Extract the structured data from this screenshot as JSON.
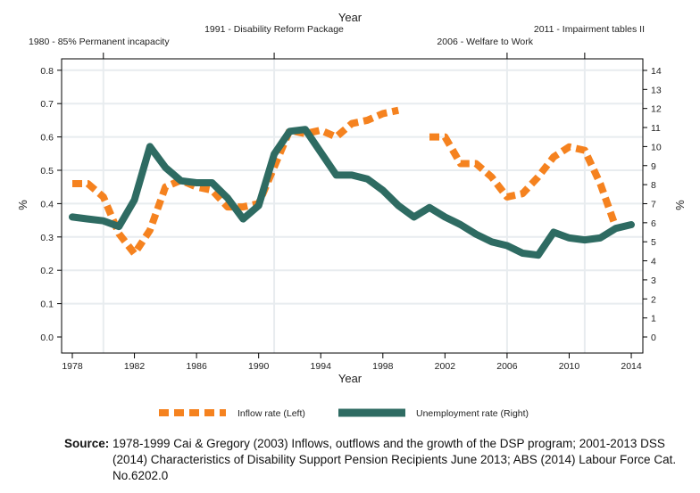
{
  "chart_data": {
    "type": "line",
    "xlabel": "Year",
    "top_axis_title": "Year",
    "ylabel_left": "%",
    "ylabel_right": "%",
    "x": [
      1978,
      1979,
      1980,
      1981,
      1982,
      1983,
      1984,
      1985,
      1986,
      1987,
      1988,
      1989,
      1990,
      1991,
      1992,
      1993,
      1994,
      1995,
      1996,
      1997,
      1998,
      1999,
      2000,
      2001,
      2002,
      2003,
      2004,
      2005,
      2006,
      2007,
      2008,
      2009,
      2010,
      2011,
      2012,
      2013,
      2014
    ],
    "xlim": [
      1977.3,
      2014.8
    ],
    "x_ticks": [
      1978,
      1982,
      1986,
      1990,
      1994,
      1998,
      2002,
      2006,
      2010,
      2014
    ],
    "ylim_left": [
      -0.05,
      0.83
    ],
    "y_ticks_left": [
      "0.0",
      "0.1",
      "0.2",
      "0.3",
      "0.4",
      "0.5",
      "0.6",
      "0.7",
      "0.8"
    ],
    "ylim_right": [
      -0.875,
      14.5
    ],
    "y_ticks_right": [
      "0",
      "1",
      "2",
      "3",
      "4",
      "5",
      "6",
      "7",
      "8",
      "9",
      "10",
      "11",
      "12",
      "13",
      "14"
    ],
    "grid": true,
    "legend_position": "bottom",
    "annotations": [
      {
        "year": 1980,
        "label": "1980 - 85% Permanent incapacity"
      },
      {
        "year": 1991,
        "label": "1991 - Disability Reform Package"
      },
      {
        "year": 2006,
        "label": "2006 - Welfare to Work"
      },
      {
        "year": 2011,
        "label": "2011 - Impairment tables II"
      }
    ],
    "series": [
      {
        "name": "Inflow rate (Left)",
        "axis": "left",
        "style": "dashed",
        "color": "#f5821f",
        "values": [
          0.46,
          0.46,
          0.42,
          0.31,
          0.25,
          0.32,
          0.45,
          0.47,
          0.45,
          0.44,
          0.39,
          0.39,
          0.4,
          0.51,
          0.62,
          0.61,
          0.62,
          0.6,
          0.64,
          0.65,
          0.67,
          0.68,
          null,
          0.6,
          0.6,
          0.52,
          0.52,
          0.48,
          0.42,
          0.43,
          0.48,
          0.54,
          0.57,
          0.56,
          0.46,
          0.33,
          null
        ]
      },
      {
        "name": "Unemployment rate (Right)",
        "axis": "right",
        "style": "solid",
        "color": "#2e6b62",
        "values": [
          6.3,
          6.2,
          6.1,
          5.8,
          7.2,
          10.0,
          8.9,
          8.2,
          8.1,
          8.1,
          7.3,
          6.2,
          6.9,
          9.6,
          10.8,
          10.9,
          9.7,
          8.5,
          8.5,
          8.3,
          7.7,
          6.9,
          6.3,
          6.8,
          6.3,
          5.9,
          5.4,
          5.0,
          4.8,
          4.4,
          4.3,
          5.5,
          5.2,
          5.1,
          5.2,
          5.7,
          5.9
        ]
      }
    ]
  },
  "source": {
    "label": "Source:",
    "text": "1978-1999 Cai & Gregory (2003) Inflows, outflows and the growth of the DSP program; 2001-2013 DSS (2014) Characteristics of Disability Support Pension Recipients June 2013; ABS (2014) Labour Force Cat. No.6202.0"
  }
}
